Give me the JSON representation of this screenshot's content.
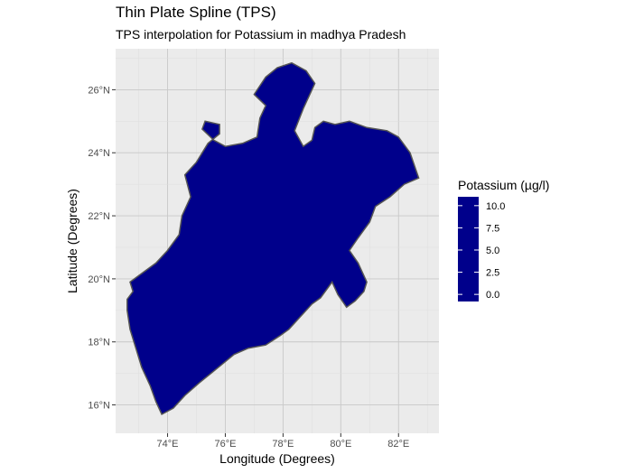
{
  "chart_data": {
    "type": "heatmap",
    "title": "Thin Plate Spline (TPS)",
    "subtitle": "TPS interpolation for Potassium in madhya Pradesh",
    "xlabel": "Longitude (Degrees)",
    "ylabel": "Latitude (Degrees)",
    "x_ticks": [
      74,
      76,
      78,
      80,
      82
    ],
    "x_tick_labels": [
      "74°E",
      "76°E",
      "78°E",
      "80°E",
      "82°E"
    ],
    "y_ticks": [
      16,
      18,
      20,
      22,
      24,
      26
    ],
    "y_tick_labels": [
      "16°N",
      "18°N",
      "20°N",
      "22°N",
      "24°N",
      "26°N"
    ],
    "xlim": [
      72.2,
      83.4
    ],
    "ylim": [
      15.1,
      27.3
    ],
    "grid": true,
    "legend": {
      "title": "Potassium (µg/l)",
      "placement": "right",
      "breaks": [
        0.0,
        2.5,
        5.0,
        7.5,
        10.0
      ],
      "break_labels": [
        "0.0",
        "2.5",
        "5.0",
        "7.5",
        "10.0"
      ],
      "range": [
        -0.8,
        11.0
      ]
    },
    "colors": {
      "scale_stops": [
        "#00008b",
        "#0000ff",
        "#00ff00",
        "#ffff00",
        "#ffa500",
        "#ff0000"
      ],
      "panel_background": "#ebebeb",
      "grid_line": "#c8c8c8",
      "boundary": "#555555"
    },
    "boundary": [
      [
        72.6,
        19.35
      ],
      [
        72.8,
        19.6
      ],
      [
        72.7,
        19.9
      ],
      [
        73.0,
        20.1
      ],
      [
        73.6,
        20.5
      ],
      [
        74.0,
        20.9
      ],
      [
        74.4,
        21.4
      ],
      [
        74.5,
        22.0
      ],
      [
        74.8,
        22.6
      ],
      [
        74.6,
        23.3
      ],
      [
        75.0,
        23.7
      ],
      [
        75.4,
        24.3
      ],
      [
        75.8,
        24.6
      ],
      [
        75.8,
        24.9
      ],
      [
        75.3,
        25.0
      ],
      [
        75.2,
        24.75
      ],
      [
        75.6,
        24.4
      ],
      [
        76.0,
        24.2
      ],
      [
        76.6,
        24.3
      ],
      [
        77.1,
        24.5
      ],
      [
        77.2,
        25.1
      ],
      [
        77.4,
        25.5
      ],
      [
        77.0,
        25.85
      ],
      [
        77.4,
        26.4
      ],
      [
        77.8,
        26.7
      ],
      [
        78.3,
        26.85
      ],
      [
        78.8,
        26.6
      ],
      [
        79.1,
        26.2
      ],
      [
        78.7,
        25.4
      ],
      [
        78.4,
        24.7
      ],
      [
        78.7,
        24.2
      ],
      [
        79.0,
        24.4
      ],
      [
        79.1,
        24.8
      ],
      [
        79.4,
        25.0
      ],
      [
        79.8,
        24.9
      ],
      [
        80.3,
        25.0
      ],
      [
        80.9,
        24.8
      ],
      [
        81.6,
        24.7
      ],
      [
        82.0,
        24.5
      ],
      [
        82.4,
        24.0
      ],
      [
        82.7,
        23.2
      ],
      [
        82.2,
        23.0
      ],
      [
        81.7,
        22.6
      ],
      [
        81.2,
        22.3
      ],
      [
        81.0,
        21.8
      ],
      [
        80.6,
        21.3
      ],
      [
        80.3,
        20.9
      ],
      [
        80.6,
        20.5
      ],
      [
        80.9,
        19.9
      ],
      [
        80.8,
        19.6
      ],
      [
        80.5,
        19.3
      ],
      [
        80.2,
        19.1
      ],
      [
        79.9,
        19.5
      ],
      [
        79.7,
        19.9
      ],
      [
        79.3,
        19.4
      ],
      [
        79.0,
        19.2
      ],
      [
        78.6,
        18.8
      ],
      [
        78.2,
        18.4
      ],
      [
        77.9,
        18.2
      ],
      [
        77.4,
        17.9
      ],
      [
        76.8,
        17.8
      ],
      [
        76.3,
        17.6
      ],
      [
        75.9,
        17.3
      ],
      [
        75.5,
        17.0
      ],
      [
        75.1,
        16.7
      ],
      [
        74.6,
        16.3
      ],
      [
        74.2,
        15.9
      ],
      [
        73.8,
        15.7
      ],
      [
        73.6,
        16.1
      ],
      [
        73.4,
        16.6
      ],
      [
        73.1,
        17.2
      ],
      [
        72.9,
        17.8
      ],
      [
        72.7,
        18.4
      ],
      [
        72.6,
        19.0
      ]
    ]
  }
}
